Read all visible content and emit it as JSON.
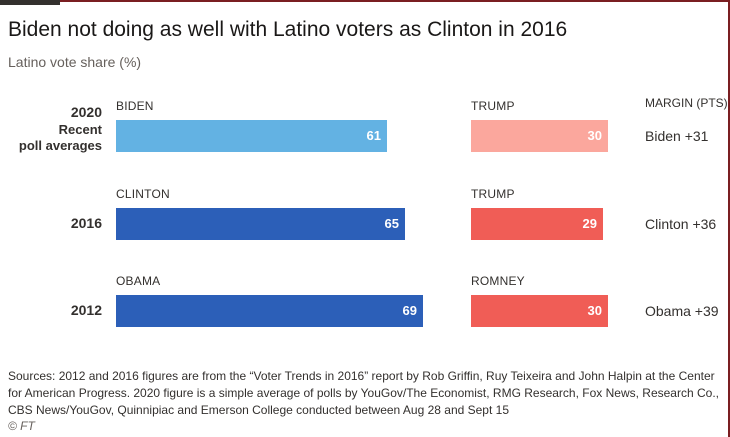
{
  "title": "Biden not doing as well with Latino voters as Clinton in 2016",
  "subtitle": "Latino vote share (%)",
  "margin_header": "MARGIN (PTS)",
  "colors": {
    "dem_2020": "#63b2e3",
    "dem": "#2c5fb8",
    "rep_2020": "#fba79d",
    "rep": "#f05d56"
  },
  "chart_data": {
    "type": "bar",
    "title": "Biden not doing as well with Latino voters as Clinton in 2016",
    "subtitle": "Latino vote share (%)",
    "rows": [
      {
        "year": "2020",
        "year_note": "Recent poll averages",
        "dem_name": "BIDEN",
        "dem_value": 61,
        "rep_name": "TRUMP",
        "rep_value": 30,
        "margin": "Biden +31"
      },
      {
        "year": "2016",
        "year_note": "",
        "dem_name": "CLINTON",
        "dem_value": 65,
        "rep_name": "TRUMP",
        "rep_value": 29,
        "margin": "Clinton +36"
      },
      {
        "year": "2012",
        "year_note": "",
        "dem_name": "OBAMA",
        "dem_value": 69,
        "rep_name": "ROMNEY",
        "rep_value": 30,
        "margin": "Obama +39"
      }
    ]
  },
  "footer": {
    "sources": "Sources: 2012 and 2016 figures are from the “Voter Trends in 2016” report by Rob Griffin, Ruy Teixeira and John Halpin at the Center for American Progress. 2020 figure is a simple average of polls by YouGov/The Economist, RMG Research, Fox News, Research Co., CBS News/YouGov, Quinnipiac and Emerson College conducted between Aug 28 and Sept 15",
    "credit": "© FT"
  }
}
